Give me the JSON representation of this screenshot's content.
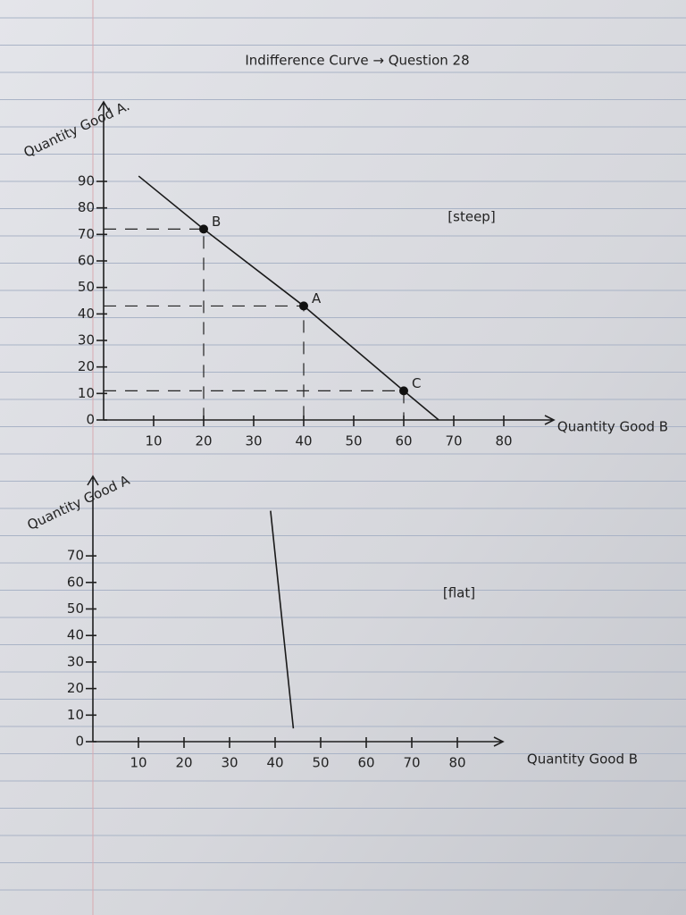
{
  "title": "Indifference Curve → Question 28",
  "chart_data": [
    {
      "type": "line",
      "x_label": "Quantity Good B",
      "y_label": "Quantity Good A.",
      "annotation": "[steep]",
      "xlim": [
        0,
        90
      ],
      "ylim": [
        0,
        120
      ],
      "xticks": [
        10,
        20,
        30,
        40,
        50,
        60,
        70,
        80
      ],
      "yticks": [
        0,
        10,
        20,
        30,
        40,
        50,
        60,
        70,
        80,
        90
      ],
      "x": [
        7,
        20,
        40,
        60,
        67
      ],
      "values": [
        92,
        72,
        43,
        11,
        0
      ],
      "color": "#1a1a1a",
      "points": [
        {
          "label": "B",
          "x": 20,
          "y": 72
        },
        {
          "label": "A",
          "x": 40,
          "y": 43
        },
        {
          "label": "C",
          "x": 60,
          "y": 11
        }
      ]
    },
    {
      "type": "line",
      "x_label": "Quantity Good B",
      "y_label": "Quantity Good A",
      "annotation": "[flat]",
      "xlim": [
        0,
        90
      ],
      "ylim": [
        0,
        100
      ],
      "xticks": [
        10,
        20,
        30,
        40,
        50,
        60,
        70,
        80
      ],
      "yticks": [
        0,
        10,
        20,
        30,
        40,
        50,
        60,
        70
      ],
      "x": [
        39,
        44
      ],
      "values": [
        87,
        5
      ],
      "color": "#1a1a1a"
    }
  ]
}
